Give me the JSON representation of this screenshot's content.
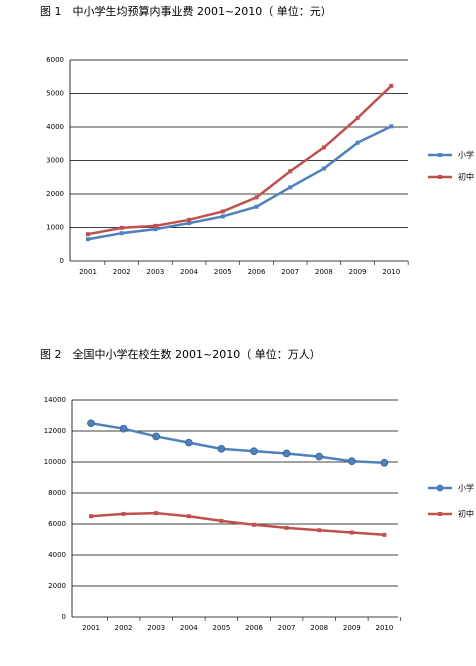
{
  "chart_data": [
    {
      "type": "line",
      "title": "图 1　中小学生均预算内事业费 2001~2010（ 单位：元）",
      "categories": [
        "2001",
        "2002",
        "2003",
        "2004",
        "2005",
        "2006",
        "2007",
        "2008",
        "2009",
        "2010"
      ],
      "series": [
        {
          "name": "小学",
          "color": "#4f81bd",
          "values": [
            650,
            830,
            950,
            1130,
            1330,
            1620,
            2200,
            2760,
            3530,
            4020
          ]
        },
        {
          "name": "初中",
          "color": "#c0504d",
          "values": [
            800,
            990,
            1050,
            1230,
            1480,
            1900,
            2680,
            3390,
            4270,
            5230
          ]
        }
      ],
      "ylim": [
        0,
        6000
      ],
      "yticks": [
        0,
        1000,
        2000,
        3000,
        4000,
        5000,
        6000
      ],
      "grid": true
    },
    {
      "type": "line",
      "title": "图 2　全国中小学在校生数 2001~2010（ 单位：万人）",
      "categories": [
        "2001",
        "2002",
        "2003",
        "2004",
        "2005",
        "2006",
        "2007",
        "2008",
        "2009",
        "2010"
      ],
      "series": [
        {
          "name": "小学",
          "color": "#4f81bd",
          "values": [
            12500,
            12150,
            11650,
            11250,
            10850,
            10700,
            10550,
            10350,
            10050,
            9950
          ]
        },
        {
          "name": "初中",
          "color": "#c0504d",
          "values": [
            6500,
            6650,
            6700,
            6500,
            6200,
            5950,
            5750,
            5600,
            5450,
            5300
          ]
        }
      ],
      "ylim": [
        0,
        14000
      ],
      "yticks": [
        0,
        2000,
        4000,
        6000,
        8000,
        10000,
        12000,
        14000
      ],
      "grid": true
    }
  ]
}
